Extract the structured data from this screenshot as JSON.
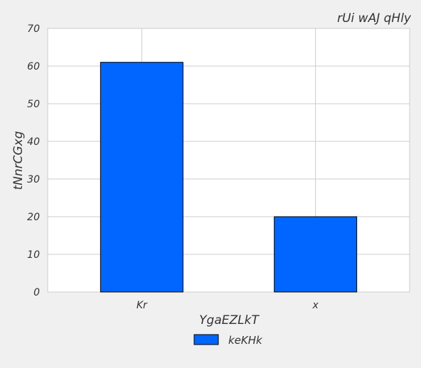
{
  "chart_data": {
    "type": "bar",
    "title": "rUi wAJ qHly",
    "xlabel": "YgaEZLkT",
    "ylabel": "tNnrCGxg",
    "categories": [
      "Kr",
      "x"
    ],
    "series": [
      {
        "name": "keKHk",
        "values": [
          61,
          20
        ],
        "color": "#0066ff"
      }
    ],
    "ylim": [
      0,
      70
    ],
    "yticks": [
      "0",
      "10",
      "20",
      "30",
      "40",
      "50",
      "60",
      "70"
    ],
    "grid": true,
    "legend": "bottom-center"
  }
}
